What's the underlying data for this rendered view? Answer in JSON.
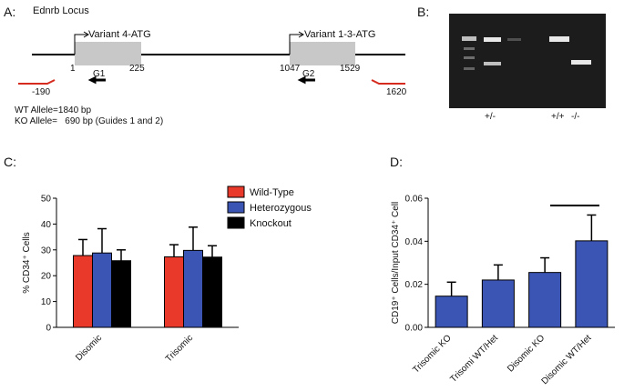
{
  "panel_a": {
    "letter": "A:",
    "title": "Ednrb Locus",
    "variant_1": "Variant 4-ATG",
    "variant_2": "Variant 1-3-ATG",
    "positions": [
      "1",
      "225",
      "1047",
      "1529"
    ],
    "guides": [
      "G1",
      "G2"
    ],
    "primers": [
      "-190",
      "1620"
    ],
    "wt_allele": "WT Allele=1840 bp",
    "ko_allele": "KO Allele=   690 bp (Guides 1 and 2)"
  },
  "panel_b": {
    "letter": "B:",
    "lanes": [
      "+/-",
      "+/+",
      "-/-"
    ]
  },
  "chart_data": [
    {
      "type": "bar",
      "panel": "C:",
      "y_label": "% CD34⁺ Cells",
      "categories": [
        "Disomic",
        "Trisomic"
      ],
      "series": [
        {
          "name": "Wild-Type",
          "color": "#e8392a",
          "values": [
            27.8,
            27.3
          ],
          "errors": [
            6.2,
            4.7
          ]
        },
        {
          "name": "Heterozygous",
          "color": "#3b55b5",
          "values": [
            28.8,
            29.8
          ],
          "errors": [
            9.4,
            9
          ]
        },
        {
          "name": "Knockout",
          "color": "#000000",
          "values": [
            25.8,
            27.2
          ],
          "errors": [
            4.2,
            4.4
          ]
        }
      ],
      "ylim": [
        0,
        50
      ],
      "yticks": [
        0,
        10,
        20,
        30,
        40,
        50
      ],
      "legend": "top-right"
    },
    {
      "type": "bar",
      "panel": "D:",
      "y_label": "CD19⁺ Cells/Input CD34⁺ Cell",
      "categories": [
        "Trisomic KO",
        "Trisomi WT/Het",
        "Disomic KO",
        "Disomic WT/Het"
      ],
      "color": "#3b55b5",
      "values": [
        0.0145,
        0.022,
        0.0255,
        0.0402
      ],
      "errors": [
        0.0065,
        0.007,
        0.0068,
        0.012
      ],
      "ylim": [
        0,
        0.06
      ],
      "yticks": [
        {
          "value": 0,
          "label": "0.00"
        },
        {
          "value": 0.02,
          "label": "0.02"
        },
        {
          "value": 0.04,
          "label": "0.04"
        },
        {
          "value": 0.06,
          "label": "0.06"
        }
      ]
    }
  ]
}
